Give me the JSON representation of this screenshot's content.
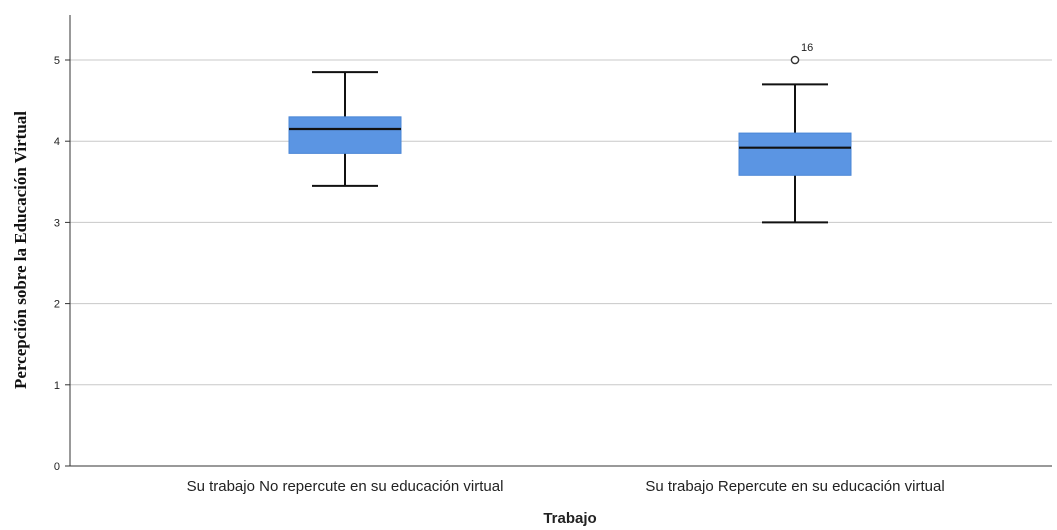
{
  "chart_data": {
    "type": "box",
    "title": "",
    "xlabel": "Trabajo",
    "ylabel": "Percepción sobre la Educación Virtual",
    "ylim": [
      0,
      5.5
    ],
    "yticks": [
      0,
      1,
      2,
      3,
      4,
      5
    ],
    "grid": true,
    "categories": [
      "Su trabajo No repercute en su educación virtual",
      "Su trabajo Repercute en su educación virtual"
    ],
    "boxes": [
      {
        "whisker_low": 3.45,
        "q1": 3.85,
        "median": 4.15,
        "q3": 4.3,
        "whisker_high": 4.85,
        "outliers": []
      },
      {
        "whisker_low": 3.0,
        "q1": 3.58,
        "median": 3.92,
        "q3": 4.1,
        "whisker_high": 4.7,
        "outliers": [
          {
            "value": 5.0,
            "label": "16"
          }
        ]
      }
    ],
    "colors": {
      "box_fill": "#5b95e3",
      "median": "#111111",
      "whisker": "#111111",
      "grid": "#c8c8c8",
      "axis": "#333333"
    }
  }
}
